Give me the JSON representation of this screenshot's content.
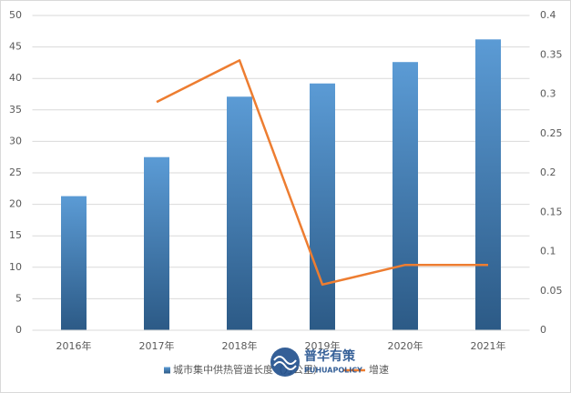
{
  "chart_data": {
    "type": "bar",
    "categories": [
      "2016年",
      "2017年",
      "2018年",
      "2019年",
      "2020年",
      "2021年"
    ],
    "series": [
      {
        "name": "城市集中供热管道长度（万公里）",
        "color": "#5b9bd5",
        "values": [
          21.3,
          27.5,
          37.1,
          39.2,
          42.6,
          46.2
        ]
      },
      {
        "name": "增速",
        "type": "line",
        "axis": "y2",
        "color": "#ed7d31",
        "values": [
          null,
          0.29,
          0.343,
          0.058,
          0.083,
          0.083
        ]
      }
    ],
    "ylim": [
      0,
      50
    ],
    "yticks": [
      0,
      5,
      10,
      15,
      20,
      25,
      30,
      35,
      40,
      45,
      50
    ],
    "y2lim": [
      0,
      0.4
    ],
    "y2ticks": [
      0,
      0.05,
      0.1,
      0.15,
      0.2,
      0.25,
      0.3,
      0.35,
      0.4
    ],
    "grid": true,
    "legend": "bottom",
    "watermark": {
      "title": "普华有策",
      "subtitle": "PUHUAPOLICY"
    }
  }
}
